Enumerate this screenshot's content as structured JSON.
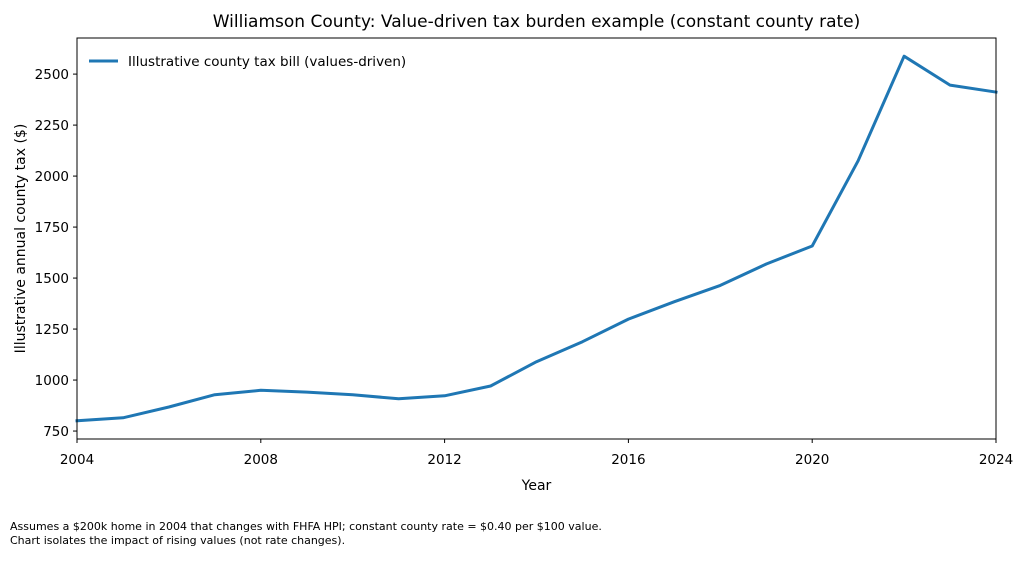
{
  "chart_data": {
    "type": "line",
    "title": "Williamson County: Value-driven tax burden example (constant county rate)",
    "xlabel": "Year",
    "ylabel": "Illustrative annual county tax ($)",
    "xlim": [
      2004,
      2024
    ],
    "ylim": [
      711,
      2677
    ],
    "xticks": [
      2004,
      2008,
      2012,
      2016,
      2020,
      2024
    ],
    "yticks": [
      750,
      1000,
      1250,
      1500,
      1750,
      2000,
      2250,
      2500
    ],
    "grid": false,
    "legend_position": "top-left",
    "x": [
      2004,
      2005,
      2006,
      2007,
      2008,
      2009,
      2010,
      2011,
      2012,
      2013,
      2014,
      2015,
      2016,
      2017,
      2018,
      2019,
      2020,
      2021,
      2022,
      2023,
      2024
    ],
    "series": [
      {
        "name": "Illustrative county tax bill (values-driven)",
        "color": "#1f77b4",
        "values": [
          800,
          815,
          868,
          928,
          950,
          941,
          928,
          908,
          923,
          971,
          1090,
          1188,
          1299,
          1384,
          1464,
          1569,
          1657,
          2075,
          2588,
          2446,
          2412
        ]
      }
    ]
  },
  "footnote": {
    "line1": "Assumes a $200k home in 2004 that changes with FHFA HPI; constant county rate = $0.40 per $100 value.",
    "line2": "Chart isolates the impact of rising values (not rate changes)."
  }
}
